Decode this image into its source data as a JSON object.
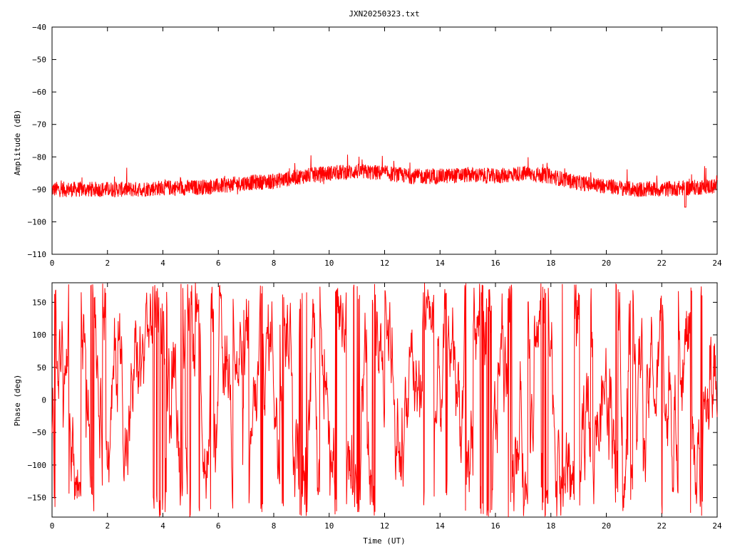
{
  "chart_data": [
    {
      "type": "line",
      "title": "JXN20250323.txt",
      "xlabel": "",
      "ylabel": "Amplitude (dB)",
      "xlim": [
        0,
        24
      ],
      "ylim": [
        -110,
        -40
      ],
      "x_ticks": [
        0,
        2,
        4,
        6,
        8,
        10,
        12,
        14,
        16,
        18,
        20,
        22,
        24
      ],
      "y_ticks": [
        -40,
        -50,
        -60,
        -70,
        -80,
        -90,
        -100,
        -110
      ],
      "y_tick_labels": [
        "−40",
        "−50",
        "−60",
        "−70",
        "−80",
        "−90",
        "−100",
        "−110"
      ],
      "color": "#ff0000",
      "x": [
        0,
        1,
        2,
        3,
        4,
        5,
        6,
        7,
        8,
        9,
        10,
        11,
        12,
        13,
        14,
        15,
        16,
        17,
        18,
        19,
        20,
        21,
        22,
        23,
        24
      ],
      "y": [
        -90,
        -90,
        -90,
        -90,
        -89.5,
        -89.5,
        -89,
        -88,
        -87.5,
        -86,
        -85,
        -84.5,
        -85,
        -86,
        -86,
        -85.5,
        -86,
        -85,
        -86,
        -88,
        -89,
        -90,
        -90,
        -89.5,
        -89
      ],
      "noise_range": 4
    },
    {
      "type": "line",
      "title": "",
      "xlabel": "Time (UT)",
      "ylabel": "Phase (deg)",
      "xlim": [
        0,
        24
      ],
      "ylim": [
        -180,
        180
      ],
      "x_ticks": [
        0,
        2,
        4,
        6,
        8,
        10,
        12,
        14,
        16,
        18,
        20,
        22,
        24
      ],
      "y_ticks": [
        150,
        100,
        50,
        0,
        -50,
        -100,
        -150
      ],
      "y_tick_labels": [
        "150",
        "100",
        "50",
        "0",
        "−50",
        "−100",
        "−150"
      ],
      "color": "#ff0000",
      "range_note": "phase wraps between -180 and 180"
    }
  ]
}
